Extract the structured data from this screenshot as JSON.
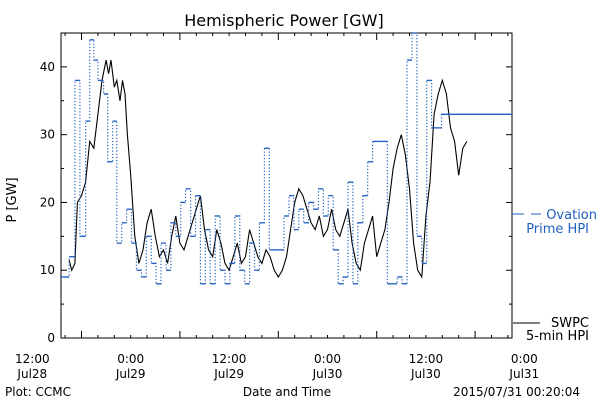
{
  "chart_data": {
    "type": "line",
    "title": "Hemispheric Power [GW]",
    "xlabel": "Date and Time",
    "ylabel": "P [GW]",
    "ylim": [
      0,
      45
    ],
    "xlim_hours": [
      -2.5,
      52.5
    ],
    "y_ticks": [
      0,
      10,
      20,
      30,
      40
    ],
    "x_ticks": [
      {
        "t": 6,
        "time": "12:00",
        "date": "Jul28"
      },
      {
        "t": 18,
        "time": "0:00",
        "date": "Jul29"
      },
      {
        "t": 30,
        "time": "12:00",
        "date": "Jul29"
      },
      {
        "t": 42,
        "time": "0:00",
        "date": "Jul30"
      },
      {
        "t": 54,
        "time": "12:00",
        "date": "Jul30"
      },
      {
        "t": 66,
        "time": "0:00",
        "date": "Jul31"
      }
    ],
    "x_unit": "hours since 2015-07-28 00:00 (axis spans ~Jul27 22:00 to Jul31 02:00)",
    "series": [
      {
        "name": "SWPC 5-min HPI",
        "style": "line",
        "color": "#000000",
        "points": [
          [
            -1.5,
            11.5
          ],
          [
            -1.2,
            10
          ],
          [
            -0.8,
            11
          ],
          [
            -0.5,
            20
          ],
          [
            0,
            21
          ],
          [
            0.5,
            23
          ],
          [
            1,
            29
          ],
          [
            1.5,
            28
          ],
          [
            2,
            33
          ],
          [
            2.5,
            38
          ],
          [
            3,
            41
          ],
          [
            3.3,
            39
          ],
          [
            3.6,
            41
          ],
          [
            4,
            37
          ],
          [
            4.3,
            38
          ],
          [
            4.7,
            35
          ],
          [
            5,
            38
          ],
          [
            5.3,
            36
          ],
          [
            5.6,
            30
          ],
          [
            6,
            24
          ],
          [
            6.5,
            15
          ],
          [
            7,
            11
          ],
          [
            7.5,
            13
          ],
          [
            8,
            17
          ],
          [
            8.5,
            19
          ],
          [
            9,
            15
          ],
          [
            9.5,
            12
          ],
          [
            10,
            13
          ],
          [
            10.5,
            11
          ],
          [
            11,
            15
          ],
          [
            11.5,
            18
          ],
          [
            12,
            14
          ],
          [
            12.5,
            13
          ],
          [
            13,
            15
          ],
          [
            13.5,
            17
          ],
          [
            14,
            19
          ],
          [
            14.5,
            21
          ],
          [
            15,
            16
          ],
          [
            15.5,
            13
          ],
          [
            16,
            12
          ],
          [
            16.5,
            16
          ],
          [
            17,
            14
          ],
          [
            17.5,
            11
          ],
          [
            18,
            10
          ],
          [
            18.5,
            12
          ],
          [
            19,
            14
          ],
          [
            19.5,
            11
          ],
          [
            20,
            12
          ],
          [
            20.5,
            16
          ],
          [
            21,
            14
          ],
          [
            21.5,
            12
          ],
          [
            22,
            11
          ],
          [
            22.5,
            13
          ],
          [
            23,
            12
          ],
          [
            23.5,
            10
          ],
          [
            24,
            9
          ],
          [
            24.5,
            10
          ],
          [
            25,
            12
          ],
          [
            25.5,
            16
          ],
          [
            26,
            20
          ],
          [
            26.5,
            22
          ],
          [
            27,
            21
          ],
          [
            27.5,
            19
          ],
          [
            28,
            17
          ],
          [
            28.5,
            16
          ],
          [
            29,
            18
          ],
          [
            29.5,
            15
          ],
          [
            30,
            16
          ],
          [
            30.5,
            19
          ],
          [
            31,
            16
          ],
          [
            31.5,
            15
          ],
          [
            32,
            17
          ],
          [
            32.5,
            19
          ],
          [
            33,
            14
          ],
          [
            33.5,
            11
          ],
          [
            34,
            10
          ],
          [
            34.5,
            14
          ],
          [
            35,
            16
          ],
          [
            35.5,
            18
          ],
          [
            36,
            12
          ],
          [
            36.5,
            14
          ],
          [
            37,
            16
          ],
          [
            37.5,
            20
          ],
          [
            38,
            25
          ],
          [
            38.5,
            28
          ],
          [
            39,
            30
          ],
          [
            39.5,
            27
          ],
          [
            40,
            22
          ],
          [
            40.5,
            14
          ],
          [
            41,
            10
          ],
          [
            41.5,
            9
          ],
          [
            42,
            18
          ],
          [
            42.5,
            23
          ],
          [
            43,
            33
          ],
          [
            43.5,
            36
          ],
          [
            44,
            38
          ],
          [
            44.5,
            36
          ],
          [
            45,
            31
          ],
          [
            45.5,
            29
          ],
          [
            46,
            24
          ],
          [
            46.5,
            28
          ],
          [
            47,
            29
          ]
        ]
      },
      {
        "name": "Ovation Prime HPI",
        "style": "dotted-step",
        "color": "#2060c0",
        "points": [
          [
            -2.5,
            9
          ],
          [
            -1.5,
            12
          ],
          [
            -0.8,
            38
          ],
          [
            -0.2,
            15
          ],
          [
            0.5,
            32
          ],
          [
            1,
            44
          ],
          [
            1.5,
            41
          ],
          [
            2,
            38
          ],
          [
            2.7,
            36
          ],
          [
            3.2,
            26
          ],
          [
            3.8,
            32
          ],
          [
            4.3,
            14
          ],
          [
            4.9,
            17
          ],
          [
            5.5,
            19
          ],
          [
            6.1,
            14
          ],
          [
            6.7,
            10
          ],
          [
            7.3,
            9
          ],
          [
            7.9,
            15
          ],
          [
            8.5,
            11
          ],
          [
            9.1,
            8
          ],
          [
            9.7,
            14
          ],
          [
            10.3,
            10
          ],
          [
            10.9,
            17
          ],
          [
            11.5,
            15
          ],
          [
            12.1,
            20
          ],
          [
            12.7,
            22
          ],
          [
            13.3,
            15
          ],
          [
            13.9,
            21
          ],
          [
            14.5,
            8
          ],
          [
            15.1,
            16
          ],
          [
            15.7,
            8
          ],
          [
            16.3,
            18
          ],
          [
            16.9,
            10
          ],
          [
            17.5,
            8
          ],
          [
            18.1,
            11
          ],
          [
            18.7,
            18
          ],
          [
            19.3,
            10
          ],
          [
            19.9,
            8
          ],
          [
            20.5,
            14
          ],
          [
            21.1,
            10
          ],
          [
            21.7,
            17
          ],
          [
            22.3,
            28
          ],
          [
            22.9,
            13
          ],
          [
            23.5,
            13
          ],
          [
            24.1,
            13
          ],
          [
            24.7,
            18
          ],
          [
            25.3,
            21
          ],
          [
            25.9,
            16
          ],
          [
            26.5,
            19
          ],
          [
            27.1,
            17
          ],
          [
            27.7,
            20
          ],
          [
            28.3,
            19
          ],
          [
            28.9,
            22
          ],
          [
            29.5,
            18
          ],
          [
            30.1,
            21
          ],
          [
            30.7,
            13
          ],
          [
            31.3,
            8
          ],
          [
            31.9,
            9
          ],
          [
            32.5,
            23
          ],
          [
            33.1,
            8
          ],
          [
            33.7,
            17
          ],
          [
            34.3,
            21
          ],
          [
            34.9,
            26
          ],
          [
            35.5,
            29
          ],
          [
            36.1,
            29
          ],
          [
            36.7,
            29
          ],
          [
            37.3,
            8
          ],
          [
            37.9,
            8
          ],
          [
            38.5,
            9
          ],
          [
            39.1,
            8
          ],
          [
            39.7,
            41
          ],
          [
            40.3,
            45
          ],
          [
            40.9,
            15
          ],
          [
            41.5,
            11
          ],
          [
            42.1,
            38
          ],
          [
            42.7,
            31
          ],
          [
            43.3,
            31
          ],
          [
            43.9,
            33
          ]
        ]
      }
    ],
    "legend": [
      {
        "label_lines": [
          "SWPC",
          "5-min HPI"
        ],
        "color": "#000000",
        "style": "solid",
        "position": "bottom-right outside"
      },
      {
        "label_lines": [
          "Ovation",
          "Prime HPI"
        ],
        "color": "#2060c0",
        "style": "dashed",
        "position": "right outside middle"
      }
    ],
    "legend_ovation_line1": "Ovation",
    "legend_ovation_line2": "Prime HPI",
    "legend_swpc_line1": "SWPC",
    "legend_swpc_line2": "5-min HPI"
  },
  "footer": {
    "left": "Plot: CCMC",
    "center": "Date and Time",
    "right": "2015/07/31 00:20:04"
  }
}
